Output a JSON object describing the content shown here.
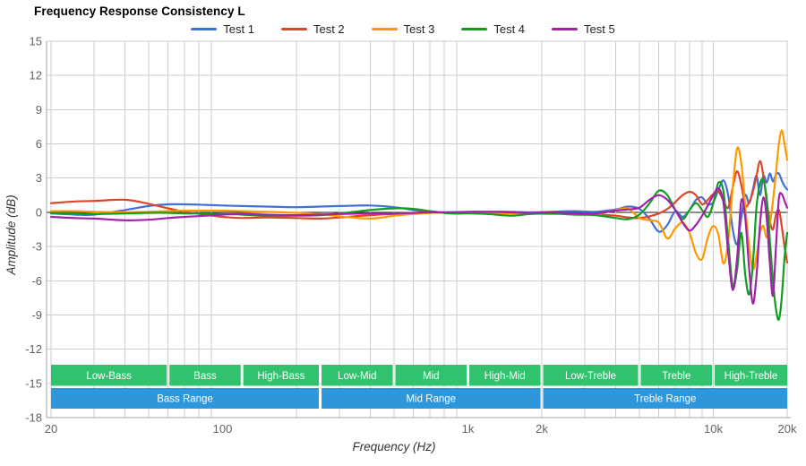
{
  "chart_data": {
    "type": "line",
    "title": "Frequency Response Consistency L",
    "xlabel": "Frequency (Hz)",
    "ylabel": "Amplitude (dB)",
    "x_scale": "log",
    "xlim": [
      20,
      20000
    ],
    "ylim": [
      -18,
      15
    ],
    "grid": true,
    "legend_position": "top",
    "y_ticks": [
      15,
      12,
      9,
      6,
      3,
      0,
      -3,
      -6,
      -9,
      -12,
      -15,
      -18
    ],
    "x_ticks": [
      {
        "value": 20,
        "label": "20"
      },
      {
        "value": 100,
        "label": "100"
      },
      {
        "value": 1000,
        "label": "1k"
      },
      {
        "value": 2000,
        "label": "2k"
      },
      {
        "value": 10000,
        "label": "10k"
      },
      {
        "value": 20000,
        "label": "20k"
      }
    ],
    "x": [
      20,
      25,
      30,
      40,
      50,
      60,
      70,
      85,
      100,
      120,
      150,
      200,
      250,
      300,
      400,
      500,
      600,
      700,
      850,
      1000,
      1200,
      1500,
      1800,
      2200,
      2700,
      3300,
      4000,
      4500,
      5000,
      5500,
      6000,
      6500,
      7000,
      7500,
      8000,
      8500,
      9000,
      9500,
      10000,
      10500,
      11000,
      11500,
      12000,
      12500,
      13000,
      13500,
      14000,
      14500,
      15000,
      15500,
      16000,
      16500,
      17000,
      17500,
      18000,
      18500,
      19000,
      19500,
      20000
    ],
    "series": [
      {
        "name": "Test 1",
        "color": "#3F72D4",
        "y": [
          -0.1,
          -0.2,
          -0.2,
          0.2,
          0.55,
          0.7,
          0.7,
          0.65,
          0.6,
          0.55,
          0.5,
          0.45,
          0.5,
          0.55,
          0.6,
          0.45,
          0.2,
          0.05,
          -0.05,
          0.0,
          0.05,
          0.05,
          0.0,
          0.05,
          0.1,
          0.05,
          0.25,
          0.5,
          0.3,
          -0.6,
          -1.7,
          -1.1,
          0.1,
          -0.4,
          0.2,
          1.1,
          1.3,
          0.7,
          0.9,
          2.0,
          2.8,
          1.5,
          -1.5,
          -2.8,
          -0.5,
          1.5,
          0.8,
          2.0,
          3.2,
          1.5,
          3.2,
          2.6,
          3.4,
          2.7,
          3.3,
          3.4,
          2.8,
          2.3,
          2.0
        ]
      },
      {
        "name": "Test 2",
        "color": "#DC452B",
        "y": [
          0.8,
          0.95,
          1.0,
          1.1,
          0.75,
          0.35,
          0.05,
          -0.2,
          -0.4,
          -0.5,
          -0.45,
          -0.5,
          -0.55,
          -0.45,
          -0.25,
          -0.15,
          -0.1,
          -0.05,
          0.0,
          0.0,
          -0.05,
          -0.05,
          -0.1,
          -0.1,
          -0.15,
          -0.2,
          -0.3,
          -0.45,
          -0.5,
          -0.35,
          -0.1,
          0.3,
          0.9,
          1.5,
          1.8,
          1.5,
          0.7,
          1.1,
          1.6,
          1.8,
          1.0,
          0.4,
          2.2,
          3.6,
          2.4,
          0.6,
          0.9,
          1.8,
          3.2,
          4.5,
          3.2,
          1.0,
          -0.8,
          -1.5,
          -0.2,
          0.2,
          -1.2,
          -3.0,
          -4.4
        ]
      },
      {
        "name": "Test 3",
        "color": "#FF9900",
        "y": [
          0.1,
          0.1,
          0.05,
          0.0,
          0.05,
          0.1,
          0.15,
          0.15,
          0.15,
          0.1,
          0.05,
          -0.05,
          -0.15,
          -0.35,
          -0.55,
          -0.3,
          -0.15,
          -0.05,
          0.0,
          -0.05,
          -0.1,
          -0.1,
          -0.1,
          -0.15,
          -0.1,
          -0.2,
          0.2,
          0.3,
          -0.5,
          -0.7,
          -0.9,
          -2.3,
          -1.4,
          -0.9,
          -1.8,
          -3.6,
          -4.1,
          -2.2,
          -1.2,
          -2.0,
          -4.5,
          -2.5,
          2.2,
          5.6,
          4.3,
          0.5,
          -3.0,
          -5.0,
          -3.8,
          -1.8,
          -1.2,
          -2.2,
          -1.0,
          1.0,
          3.5,
          6.0,
          7.2,
          6.0,
          4.6
        ]
      },
      {
        "name": "Test 4",
        "color": "#149C20",
        "y": [
          -0.05,
          -0.1,
          -0.15,
          -0.1,
          -0.05,
          -0.05,
          -0.1,
          -0.1,
          -0.15,
          -0.2,
          -0.3,
          -0.3,
          -0.25,
          -0.1,
          0.2,
          0.35,
          0.3,
          0.1,
          -0.1,
          -0.1,
          -0.15,
          -0.3,
          -0.15,
          -0.1,
          -0.2,
          -0.25,
          -0.5,
          -0.6,
          -0.2,
          0.8,
          1.9,
          1.5,
          0.2,
          -0.6,
          0.2,
          0.8,
          0.2,
          -0.4,
          0.8,
          2.6,
          1.8,
          -2.5,
          -6.5,
          -5.0,
          -1.8,
          -5.5,
          -7.2,
          -4.5,
          0.5,
          2.5,
          2.8,
          1.2,
          -2.5,
          -6.0,
          -8.5,
          -9.4,
          -7.5,
          -4.0,
          -1.8
        ]
      },
      {
        "name": "Test 5",
        "color": "#A122A8",
        "y": [
          -0.4,
          -0.5,
          -0.55,
          -0.7,
          -0.65,
          -0.5,
          -0.4,
          -0.3,
          -0.2,
          -0.15,
          -0.2,
          -0.25,
          -0.2,
          -0.15,
          -0.1,
          -0.1,
          -0.05,
          0.0,
          0.0,
          0.05,
          0.05,
          0.0,
          -0.05,
          0.0,
          -0.1,
          -0.1,
          0.15,
          0.25,
          0.4,
          1.1,
          1.5,
          1.1,
          0.2,
          -0.9,
          -1.6,
          -1.1,
          -0.3,
          0.6,
          1.5,
          2.1,
          0.8,
          -3.5,
          -6.8,
          -4.0,
          1.0,
          -0.5,
          -5.0,
          -8.0,
          -5.5,
          -1.0,
          1.3,
          -0.5,
          -4.5,
          -7.3,
          -3.0,
          1.2,
          1.6,
          1.0,
          0.4
        ]
      }
    ],
    "bands": {
      "sub_color": "#30C26D",
      "main_color": "#2E96DB",
      "sub": [
        {
          "label": "Low-Bass",
          "f1": 20,
          "f2": 60
        },
        {
          "label": "Bass",
          "f1": 60,
          "f2": 120
        },
        {
          "label": "High-Bass",
          "f1": 120,
          "f2": 250
        },
        {
          "label": "Low-Mid",
          "f1": 250,
          "f2": 500
        },
        {
          "label": "Mid",
          "f1": 500,
          "f2": 1000
        },
        {
          "label": "High-Mid",
          "f1": 1000,
          "f2": 2000
        },
        {
          "label": "Low-Treble",
          "f1": 2000,
          "f2": 5000
        },
        {
          "label": "Treble",
          "f1": 5000,
          "f2": 10000
        },
        {
          "label": "High-Treble",
          "f1": 10000,
          "f2": 20000
        }
      ],
      "main": [
        {
          "label": "Bass Range",
          "f1": 20,
          "f2": 250
        },
        {
          "label": "Mid Range",
          "f1": 250,
          "f2": 2000
        },
        {
          "label": "Treble Range",
          "f1": 2000,
          "f2": 20000
        }
      ]
    },
    "colors": {
      "grid": "#cccccc",
      "axis": "#a6a6a6",
      "zero_line": "#1a1a1a",
      "tick_text": "#636363"
    }
  }
}
